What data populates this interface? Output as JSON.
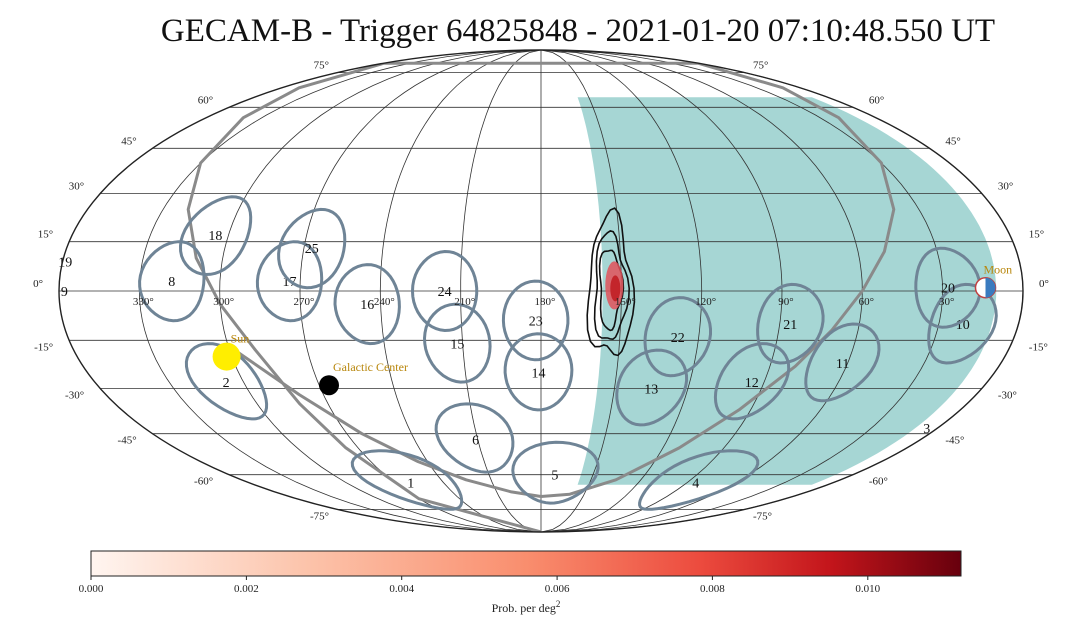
{
  "chart_data": {
    "type": "skymap",
    "projection": "mollweide",
    "title": "GECAM-B - Trigger 64825848 - 2021-01-20 07:10:48.550 UT",
    "ra_tick_labels": [
      {
        "ra": 330,
        "label": "330°"
      },
      {
        "ra": 300,
        "label": "300°"
      },
      {
        "ra": 270,
        "label": "270°"
      },
      {
        "ra": 240,
        "label": "240°"
      },
      {
        "ra": 210,
        "label": "210°"
      },
      {
        "ra": 180,
        "label": "180°"
      },
      {
        "ra": 150,
        "label": "150°"
      },
      {
        "ra": 120,
        "label": "120°"
      },
      {
        "ra": 90,
        "label": "90°"
      },
      {
        "ra": 60,
        "label": "60°"
      },
      {
        "ra": 30,
        "label": "30°"
      }
    ],
    "dec_tick_labels": [
      {
        "dec": 75,
        "label": "75°"
      },
      {
        "dec": 60,
        "label": "60°"
      },
      {
        "dec": 45,
        "label": "45°"
      },
      {
        "dec": 30,
        "label": "30°"
      },
      {
        "dec": 15,
        "label": "15°"
      },
      {
        "dec": 0,
        "label": "0°"
      },
      {
        "dec": -15,
        "label": "-15°"
      },
      {
        "dec": -30,
        "label": "-30°"
      },
      {
        "dec": -45,
        "label": "-45°"
      },
      {
        "dec": -60,
        "label": "-60°"
      },
      {
        "dec": -75,
        "label": "-75°"
      }
    ],
    "detectors": [
      {
        "label": "1",
        "ra": 260,
        "dec": -63,
        "radius": 12
      },
      {
        "label": "2",
        "ra": 307,
        "dec": -28,
        "radius": 12
      },
      {
        "label": "3",
        "ra": 5,
        "dec": -43,
        "radius": 12
      },
      {
        "label": "4",
        "ra": 85,
        "dec": -63,
        "radius": 12
      },
      {
        "label": "5",
        "ra": 172,
        "dec": -60,
        "radius": 12
      },
      {
        "label": "6",
        "ra": 211,
        "dec": -47,
        "radius": 12
      },
      {
        "label": "8",
        "ra": 318,
        "dec": 3,
        "radius": 12
      },
      {
        "label": "9",
        "ra": 358,
        "dec": 0,
        "radius": 12
      },
      {
        "label": "10",
        "ra": 21,
        "dec": -10,
        "radius": 12
      },
      {
        "label": "11",
        "ra": 62,
        "dec": -22,
        "radius": 12
      },
      {
        "label": "12",
        "ra": 95,
        "dec": -28,
        "radius": 12
      },
      {
        "label": "13",
        "ra": 135,
        "dec": -30,
        "radius": 12
      },
      {
        "label": "14",
        "ra": 181,
        "dec": -25,
        "radius": 12
      },
      {
        "label": "15",
        "ra": 212,
        "dec": -16,
        "radius": 12
      },
      {
        "label": "16",
        "ra": 245,
        "dec": -4,
        "radius": 12
      },
      {
        "label": "17",
        "ra": 274,
        "dec": 3,
        "radius": 12
      },
      {
        "label": "18",
        "ra": 305,
        "dec": 17,
        "radius": 12
      },
      {
        "label": "19",
        "ra": 359,
        "dec": 9,
        "radius": 12
      },
      {
        "label": "20",
        "ra": 28,
        "dec": 1,
        "radius": 12
      },
      {
        "label": "21",
        "ra": 86,
        "dec": -10,
        "radius": 12
      },
      {
        "label": "22",
        "ra": 128,
        "dec": -14,
        "radius": 12
      },
      {
        "label": "23",
        "ra": 182,
        "dec": -9,
        "radius": 12
      },
      {
        "label": "24",
        "ra": 216,
        "dec": 0,
        "radius": 12
      },
      {
        "label": "25",
        "ra": 267,
        "dec": 13,
        "radius": 12
      }
    ],
    "earth_occultation": {
      "color": "#a6d6d4",
      "ra_min": 10,
      "ra_max": 157,
      "dec_min": -64,
      "dec_max": 64
    },
    "localization": {
      "ra": 153,
      "dec": 2,
      "contour_color": "#111111",
      "fill_color": "#e0525a"
    },
    "galactic_plane": {
      "color": "#8a8a8a",
      "points": [
        [
          263,
          -90
        ],
        [
          270,
          -70
        ],
        [
          276,
          -50
        ],
        [
          282,
          -35
        ],
        [
          290,
          -18
        ],
        [
          300,
          -4
        ],
        [
          310,
          10
        ],
        [
          320,
          25
        ],
        [
          330,
          40
        ],
        [
          340,
          56
        ],
        [
          348,
          68
        ],
        [
          360,
          80
        ],
        [
          0,
          80
        ],
        [
          12,
          68
        ],
        [
          20,
          56
        ],
        [
          30,
          40
        ],
        [
          40,
          25
        ],
        [
          50,
          12
        ],
        [
          60,
          0
        ],
        [
          70,
          -12
        ],
        [
          80,
          -23
        ],
        [
          95,
          -37
        ],
        [
          112,
          -50
        ],
        [
          135,
          -62
        ],
        [
          160,
          -68
        ],
        [
          180,
          -69
        ],
        [
          200,
          -67
        ],
        [
          225,
          -62
        ],
        [
          245,
          -55
        ],
        [
          263,
          -45
        ],
        [
          280,
          -32
        ],
        [
          298,
          -18
        ]
      ]
    },
    "objects": [
      {
        "name": "Sun",
        "ra": 302,
        "dec": -20,
        "color": "#ffee00"
      },
      {
        "name": "Moon",
        "ra": 14,
        "dec": 1,
        "color": "#3a7bbf"
      },
      {
        "name": "Galactic Center",
        "ra": 266,
        "dec": -29,
        "color": "#000000"
      }
    ],
    "colorbar": {
      "label": "Prob. per deg",
      "label_superscript": "2",
      "min": 0.0,
      "max": 0.0112,
      "ticks": [
        "0.000",
        "0.002",
        "0.004",
        "0.006",
        "0.008",
        "0.010"
      ],
      "colormap": "Reds"
    }
  }
}
